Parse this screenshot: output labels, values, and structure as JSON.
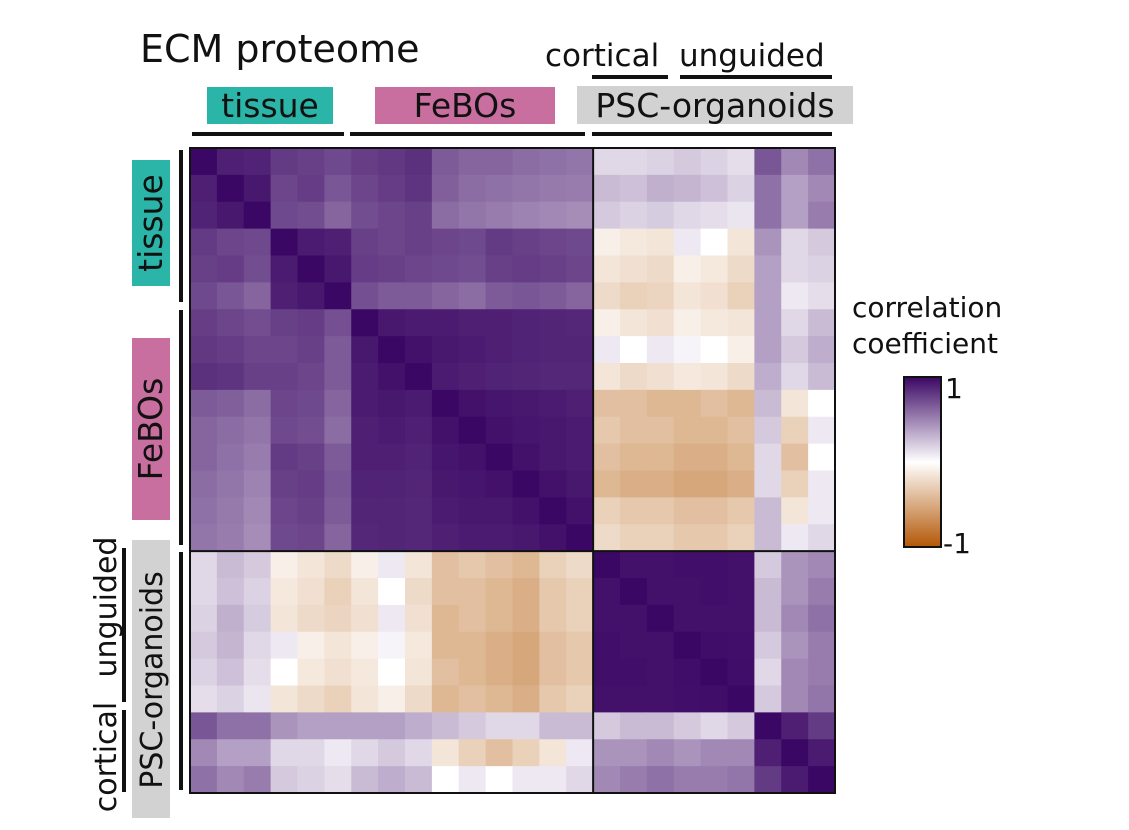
{
  "chart_data": {
    "type": "heatmap",
    "title": "ECM proteome",
    "groups": [
      {
        "label": "tissue",
        "size": 6,
        "color": "#2ab5a8"
      },
      {
        "label": "FeBOs",
        "size": 9,
        "color": "#c96fa0"
      },
      {
        "label": "PSC-organoids",
        "size": 9,
        "color": "#d2d2d2",
        "subgroups": [
          {
            "label": "cortical",
            "size": 3
          },
          {
            "label": "unguided",
            "size": 6
          }
        ]
      }
    ],
    "column_subgroup_labels": [
      "cortical",
      "unguided"
    ],
    "row_subgroup_labels": [
      "cortical",
      "unguided"
    ],
    "legend": {
      "title_lines": [
        "correlation",
        "coefficient"
      ],
      "max_label": "1",
      "min_label": "-1",
      "range": [
        -1,
        1
      ],
      "colors": [
        "#3b0764",
        "#ffffff",
        "#b35806"
      ],
      "placement": "right"
    },
    "matrix": [
      [
        1.0,
        0.88,
        0.86,
        0.75,
        0.72,
        0.68,
        0.73,
        0.76,
        0.8,
        0.6,
        0.55,
        0.55,
        0.52,
        0.5,
        0.48,
        0.1,
        0.1,
        0.12,
        0.15,
        0.12,
        0.08,
        0.62,
        0.4,
        0.5
      ],
      [
        0.88,
        1.0,
        0.92,
        0.7,
        0.74,
        0.62,
        0.7,
        0.74,
        0.78,
        0.58,
        0.52,
        0.5,
        0.48,
        0.46,
        0.45,
        0.2,
        0.18,
        0.24,
        0.22,
        0.18,
        0.12,
        0.5,
        0.3,
        0.4
      ],
      [
        0.86,
        0.92,
        1.0,
        0.68,
        0.66,
        0.55,
        0.66,
        0.7,
        0.72,
        0.52,
        0.48,
        0.45,
        0.42,
        0.4,
        0.38,
        0.15,
        0.12,
        0.14,
        0.1,
        0.08,
        0.06,
        0.5,
        0.3,
        0.45
      ],
      [
        0.75,
        0.7,
        0.68,
        1.0,
        0.9,
        0.88,
        0.72,
        0.7,
        0.72,
        0.7,
        0.68,
        0.75,
        0.72,
        0.7,
        0.68,
        -0.05,
        -0.08,
        -0.1,
        0.05,
        0.0,
        -0.1,
        0.35,
        0.1,
        0.15
      ],
      [
        0.72,
        0.74,
        0.66,
        0.9,
        1.0,
        0.92,
        0.74,
        0.72,
        0.7,
        0.68,
        0.66,
        0.72,
        0.74,
        0.72,
        0.7,
        -0.1,
        -0.12,
        -0.15,
        -0.05,
        -0.08,
        -0.15,
        0.3,
        0.1,
        0.12
      ],
      [
        0.68,
        0.62,
        0.55,
        0.88,
        0.92,
        1.0,
        0.65,
        0.6,
        0.6,
        0.55,
        0.52,
        0.6,
        0.62,
        0.6,
        0.55,
        -0.15,
        -0.2,
        -0.18,
        -0.1,
        -0.12,
        -0.2,
        0.3,
        0.05,
        0.08
      ],
      [
        0.73,
        0.7,
        0.66,
        0.72,
        0.74,
        0.65,
        1.0,
        0.92,
        0.9,
        0.9,
        0.88,
        0.88,
        0.86,
        0.85,
        0.84,
        -0.05,
        -0.1,
        -0.12,
        -0.05,
        -0.08,
        -0.1,
        0.3,
        0.1,
        0.2
      ],
      [
        0.76,
        0.74,
        0.7,
        0.7,
        0.72,
        0.6,
        0.92,
        1.0,
        0.95,
        0.92,
        0.9,
        0.88,
        0.86,
        0.85,
        0.85,
        0.05,
        0.0,
        0.05,
        0.02,
        0.0,
        -0.05,
        0.3,
        0.15,
        0.25
      ],
      [
        0.8,
        0.78,
        0.72,
        0.72,
        0.7,
        0.6,
        0.9,
        0.95,
        1.0,
        0.9,
        0.88,
        0.86,
        0.85,
        0.84,
        0.84,
        -0.1,
        -0.15,
        -0.12,
        -0.08,
        -0.1,
        -0.15,
        0.25,
        0.1,
        0.2
      ],
      [
        0.6,
        0.58,
        0.52,
        0.7,
        0.68,
        0.55,
        0.9,
        0.92,
        0.9,
        1.0,
        0.95,
        0.93,
        0.92,
        0.9,
        0.88,
        -0.3,
        -0.3,
        -0.35,
        -0.35,
        -0.3,
        -0.35,
        0.2,
        -0.1,
        0.0
      ],
      [
        0.55,
        0.52,
        0.48,
        0.68,
        0.66,
        0.52,
        0.88,
        0.9,
        0.88,
        0.95,
        1.0,
        0.95,
        0.93,
        0.92,
        0.9,
        -0.25,
        -0.3,
        -0.3,
        -0.35,
        -0.35,
        -0.3,
        0.15,
        -0.2,
        0.05
      ],
      [
        0.55,
        0.5,
        0.45,
        0.75,
        0.72,
        0.6,
        0.88,
        0.88,
        0.86,
        0.93,
        0.95,
        1.0,
        0.95,
        0.92,
        0.9,
        -0.3,
        -0.35,
        -0.35,
        -0.4,
        -0.4,
        -0.35,
        0.1,
        -0.3,
        0.0
      ],
      [
        0.52,
        0.48,
        0.42,
        0.72,
        0.74,
        0.62,
        0.86,
        0.86,
        0.85,
        0.92,
        0.93,
        0.95,
        1.0,
        0.95,
        0.92,
        -0.35,
        -0.4,
        -0.4,
        -0.45,
        -0.45,
        -0.4,
        0.1,
        -0.2,
        0.05
      ],
      [
        0.5,
        0.46,
        0.4,
        0.7,
        0.72,
        0.6,
        0.85,
        0.85,
        0.84,
        0.9,
        0.92,
        0.92,
        0.95,
        1.0,
        0.95,
        -0.2,
        -0.25,
        -0.25,
        -0.3,
        -0.3,
        -0.25,
        0.2,
        -0.1,
        0.05
      ],
      [
        0.48,
        0.45,
        0.38,
        0.68,
        0.7,
        0.55,
        0.84,
        0.85,
        0.84,
        0.88,
        0.9,
        0.9,
        0.92,
        0.95,
        1.0,
        -0.15,
        -0.2,
        -0.2,
        -0.25,
        -0.25,
        -0.2,
        0.2,
        0.05,
        0.1
      ],
      [
        0.1,
        0.2,
        0.15,
        -0.05,
        -0.1,
        -0.15,
        -0.05,
        0.05,
        -0.1,
        -0.3,
        -0.25,
        -0.3,
        -0.35,
        -0.2,
        -0.15,
        1.0,
        0.95,
        0.95,
        0.96,
        0.96,
        0.95,
        0.15,
        0.35,
        0.4
      ],
      [
        0.1,
        0.18,
        0.12,
        -0.08,
        -0.12,
        -0.2,
        -0.1,
        0.0,
        -0.15,
        -0.3,
        -0.3,
        -0.35,
        -0.4,
        -0.25,
        -0.2,
        0.95,
        1.0,
        0.95,
        0.95,
        0.96,
        0.95,
        0.2,
        0.35,
        0.45
      ],
      [
        0.12,
        0.24,
        0.14,
        -0.1,
        -0.15,
        -0.18,
        -0.12,
        0.05,
        -0.12,
        -0.35,
        -0.3,
        -0.35,
        -0.4,
        -0.25,
        -0.2,
        0.95,
        0.95,
        1.0,
        0.95,
        0.95,
        0.95,
        0.2,
        0.4,
        0.5
      ],
      [
        0.15,
        0.22,
        0.1,
        0.05,
        -0.05,
        -0.1,
        -0.05,
        0.02,
        -0.08,
        -0.35,
        -0.35,
        -0.4,
        -0.45,
        -0.3,
        -0.25,
        0.96,
        0.95,
        0.95,
        1.0,
        0.97,
        0.96,
        0.15,
        0.35,
        0.45
      ],
      [
        0.12,
        0.18,
        0.08,
        0.0,
        -0.08,
        -0.12,
        -0.08,
        0.0,
        -0.1,
        -0.3,
        -0.35,
        -0.4,
        -0.45,
        -0.3,
        -0.25,
        0.96,
        0.96,
        0.95,
        0.97,
        1.0,
        0.97,
        0.1,
        0.4,
        0.45
      ],
      [
        0.08,
        0.12,
        0.06,
        -0.1,
        -0.15,
        -0.2,
        -0.1,
        -0.05,
        -0.15,
        -0.35,
        -0.3,
        -0.35,
        -0.4,
        -0.25,
        -0.2,
        0.95,
        0.95,
        0.95,
        0.96,
        0.97,
        1.0,
        0.15,
        0.4,
        0.48
      ],
      [
        0.62,
        0.5,
        0.5,
        0.35,
        0.3,
        0.3,
        0.3,
        0.3,
        0.25,
        0.2,
        0.15,
        0.1,
        0.1,
        0.2,
        0.2,
        0.15,
        0.2,
        0.2,
        0.15,
        0.1,
        0.15,
        1.0,
        0.88,
        0.75
      ],
      [
        0.4,
        0.3,
        0.3,
        0.1,
        0.1,
        0.05,
        0.1,
        0.15,
        0.1,
        -0.1,
        -0.2,
        -0.3,
        -0.2,
        -0.1,
        0.05,
        0.35,
        0.35,
        0.4,
        0.35,
        0.4,
        0.4,
        0.88,
        1.0,
        0.9
      ],
      [
        0.5,
        0.4,
        0.45,
        0.15,
        0.12,
        0.08,
        0.2,
        0.25,
        0.2,
        0.0,
        0.05,
        0.0,
        0.05,
        0.05,
        0.1,
        0.4,
        0.45,
        0.5,
        0.45,
        0.45,
        0.48,
        0.75,
        0.9,
        1.0
      ]
    ]
  }
}
